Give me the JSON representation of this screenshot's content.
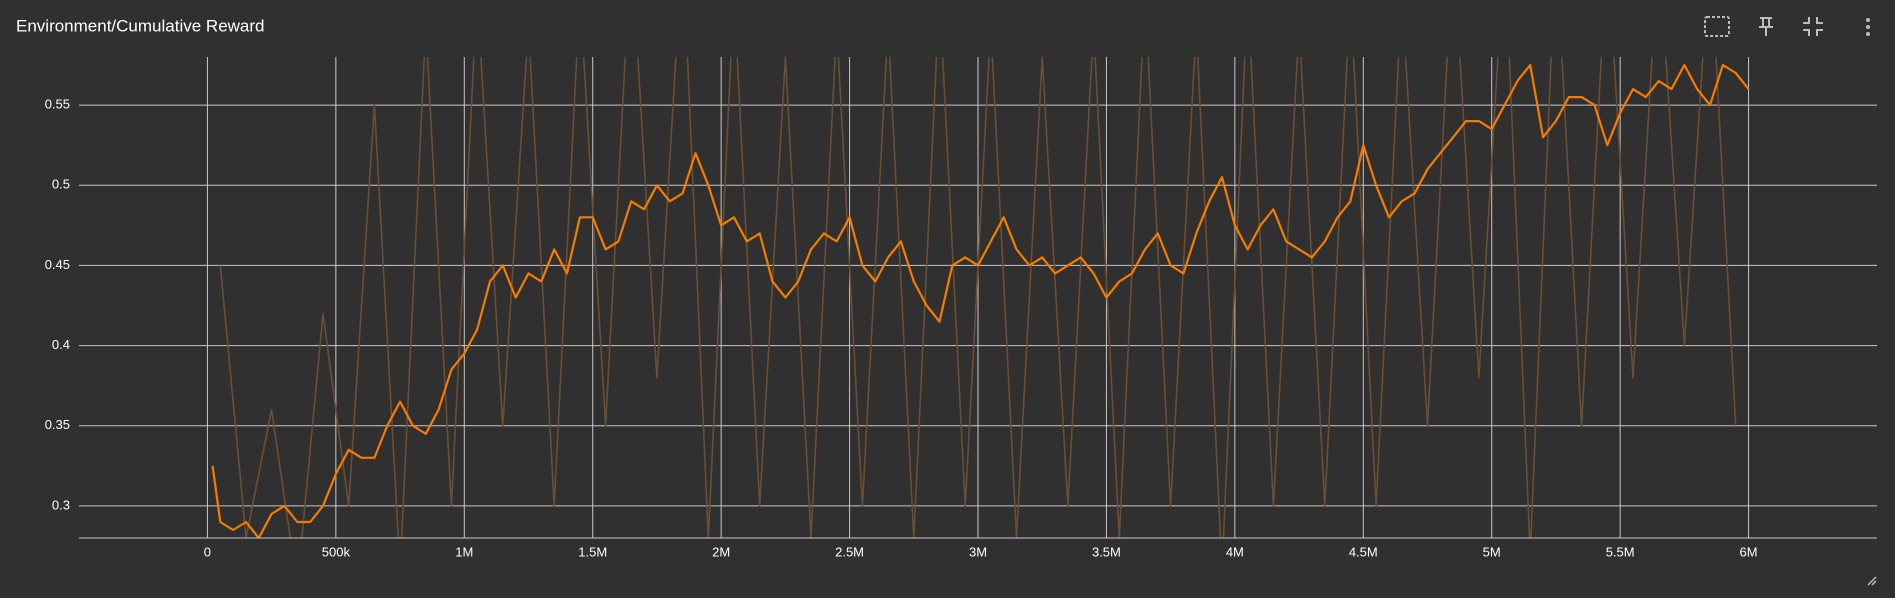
{
  "chart_data": {
    "type": "line",
    "title": "Environment/Cumulative Reward",
    "xlim": [
      -500000,
      6500000
    ],
    "xticks": [
      0,
      {
        "value": 500000,
        "label": "500k"
      },
      {
        "value": 1000000,
        "label": "1M"
      },
      {
        "value": 1500000,
        "label": "1.5M"
      },
      {
        "value": 2000000,
        "label": "2M"
      },
      {
        "value": 2500000,
        "label": "2.5M"
      },
      {
        "value": 3000000,
        "label": "3M"
      },
      {
        "value": 3500000,
        "label": "3.5M"
      },
      {
        "value": 4000000,
        "label": "4M"
      },
      {
        "value": 4500000,
        "label": "4.5M"
      },
      {
        "value": 5000000,
        "label": "5M"
      },
      {
        "value": 5500000,
        "label": "5.5M"
      },
      {
        "value": 6000000,
        "label": "6M"
      }
    ],
    "ylim": [
      0.28,
      0.58
    ],
    "yticks": [
      0.3,
      0.35,
      0.4,
      0.45,
      0.5,
      0.55
    ],
    "grid": true,
    "series": [
      {
        "color": "#6b4e33",
        "x": [
          50000,
          150000,
          250000,
          350000,
          450000,
          550000,
          650000,
          750000,
          850000,
          950000,
          1050000,
          1150000,
          1250000,
          1350000,
          1450000,
          1550000,
          1650000,
          1750000,
          1850000,
          1950000,
          2050000,
          2150000,
          2250000,
          2350000,
          2450000,
          2550000,
          2650000,
          2750000,
          2850000,
          2950000,
          3050000,
          3150000,
          3250000,
          3350000,
          3450000,
          3550000,
          3650000,
          3750000,
          3850000,
          3950000,
          4050000,
          4150000,
          4250000,
          4350000,
          4450000,
          4550000,
          4650000,
          4750000,
          4850000,
          4950000,
          5050000,
          5150000,
          5250000,
          5350000,
          5450000,
          5550000,
          5650000,
          5750000,
          5850000,
          5950000
        ],
        "values": [
          0.45,
          0.28,
          0.36,
          0.25,
          0.42,
          0.3,
          0.55,
          0.26,
          0.6,
          0.3,
          0.62,
          0.35,
          0.6,
          0.3,
          0.62,
          0.35,
          0.65,
          0.38,
          0.65,
          0.28,
          0.62,
          0.3,
          0.58,
          0.28,
          0.6,
          0.3,
          0.6,
          0.28,
          0.62,
          0.3,
          0.6,
          0.28,
          0.58,
          0.3,
          0.6,
          0.28,
          0.62,
          0.3,
          0.6,
          0.26,
          0.62,
          0.3,
          0.6,
          0.3,
          0.62,
          0.3,
          0.62,
          0.35,
          0.65,
          0.38,
          0.65,
          0.27,
          0.65,
          0.35,
          0.65,
          0.38,
          0.65,
          0.4,
          0.65,
          0.35
        ]
      },
      {
        "color": "#f57c00",
        "x": [
          20000,
          50000,
          100000,
          150000,
          200000,
          250000,
          300000,
          350000,
          400000,
          450000,
          500000,
          550000,
          600000,
          650000,
          700000,
          750000,
          800000,
          850000,
          900000,
          950000,
          1000000,
          1050000,
          1100000,
          1150000,
          1200000,
          1250000,
          1300000,
          1350000,
          1400000,
          1450000,
          1500000,
          1550000,
          1600000,
          1650000,
          1700000,
          1750000,
          1800000,
          1850000,
          1900000,
          1950000,
          2000000,
          2050000,
          2100000,
          2150000,
          2200000,
          2250000,
          2300000,
          2350000,
          2400000,
          2450000,
          2500000,
          2550000,
          2600000,
          2650000,
          2700000,
          2750000,
          2800000,
          2850000,
          2900000,
          2950000,
          3000000,
          3050000,
          3100000,
          3150000,
          3200000,
          3250000,
          3300000,
          3350000,
          3400000,
          3450000,
          3500000,
          3550000,
          3600000,
          3650000,
          3700000,
          3750000,
          3800000,
          3850000,
          3900000,
          3950000,
          4000000,
          4050000,
          4100000,
          4150000,
          4200000,
          4250000,
          4300000,
          4350000,
          4400000,
          4450000,
          4500000,
          4550000,
          4600000,
          4650000,
          4700000,
          4750000,
          4800000,
          4850000,
          4900000,
          4950000,
          5000000,
          5050000,
          5100000,
          5150000,
          5200000,
          5250000,
          5300000,
          5350000,
          5400000,
          5450000,
          5500000,
          5550000,
          5600000,
          5650000,
          5700000,
          5750000,
          5800000,
          5850000,
          5900000,
          5950000,
          6000000
        ],
        "values": [
          0.325,
          0.29,
          0.285,
          0.29,
          0.28,
          0.295,
          0.3,
          0.29,
          0.29,
          0.3,
          0.32,
          0.335,
          0.33,
          0.33,
          0.35,
          0.365,
          0.35,
          0.345,
          0.36,
          0.385,
          0.395,
          0.41,
          0.44,
          0.45,
          0.43,
          0.445,
          0.44,
          0.46,
          0.445,
          0.48,
          0.48,
          0.46,
          0.465,
          0.49,
          0.485,
          0.5,
          0.49,
          0.495,
          0.52,
          0.5,
          0.475,
          0.48,
          0.465,
          0.47,
          0.44,
          0.43,
          0.44,
          0.46,
          0.47,
          0.465,
          0.48,
          0.45,
          0.44,
          0.455,
          0.465,
          0.44,
          0.425,
          0.415,
          0.45,
          0.455,
          0.45,
          0.465,
          0.48,
          0.46,
          0.45,
          0.455,
          0.445,
          0.45,
          0.455,
          0.445,
          0.43,
          0.44,
          0.445,
          0.46,
          0.47,
          0.45,
          0.445,
          0.47,
          0.49,
          0.505,
          0.475,
          0.46,
          0.475,
          0.485,
          0.465,
          0.46,
          0.455,
          0.465,
          0.48,
          0.49,
          0.525,
          0.5,
          0.48,
          0.49,
          0.495,
          0.51,
          0.52,
          0.53,
          0.54,
          0.54,
          0.535,
          0.55,
          0.565,
          0.575,
          0.53,
          0.54,
          0.555,
          0.555,
          0.55,
          0.525,
          0.545,
          0.56,
          0.555,
          0.565,
          0.56,
          0.575,
          0.56,
          0.55,
          0.575,
          0.57,
          0.56
        ]
      }
    ]
  }
}
